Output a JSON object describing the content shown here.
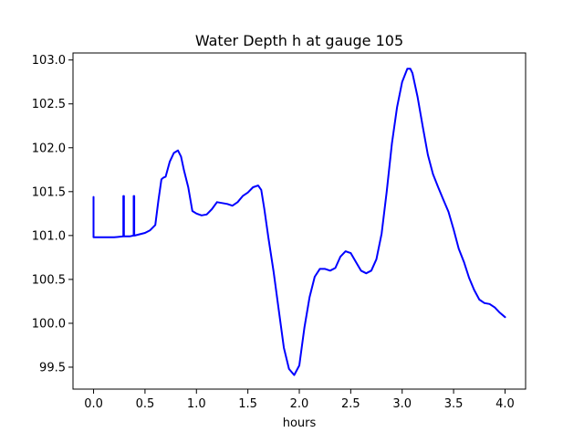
{
  "chart_data": {
    "type": "line",
    "title": "Water Depth h at gauge 105",
    "xlabel": "hours",
    "ylabel": "",
    "xlim": [
      -0.2,
      4.2
    ],
    "ylim": [
      99.25,
      103.08
    ],
    "xticks": [
      0.0,
      0.5,
      1.0,
      1.5,
      2.0,
      2.5,
      3.0,
      3.5,
      4.0
    ],
    "xtick_labels": [
      "0.0",
      "0.5",
      "1.0",
      "1.5",
      "2.0",
      "2.5",
      "3.0",
      "3.5",
      "4.0"
    ],
    "yticks": [
      99.5,
      100.0,
      100.5,
      101.0,
      101.5,
      102.0,
      102.5,
      103.0
    ],
    "ytick_labels": [
      "99.5",
      "100.0",
      "100.5",
      "101.0",
      "101.5",
      "102.0",
      "102.5",
      "103.0"
    ],
    "grid": false,
    "series": [
      {
        "color": "#0000ff",
        "x": [
          0.0,
          0.0,
          0.01,
          0.1,
          0.2,
          0.29,
          0.29,
          0.295,
          0.295,
          0.3,
          0.35,
          0.39,
          0.39,
          0.395,
          0.395,
          0.4,
          0.5,
          0.55,
          0.6,
          0.63,
          0.66,
          0.68,
          0.7,
          0.74,
          0.78,
          0.82,
          0.85,
          0.88,
          0.92,
          0.96,
          1.0,
          1.05,
          1.1,
          1.15,
          1.2,
          1.25,
          1.3,
          1.35,
          1.4,
          1.45,
          1.5,
          1.55,
          1.6,
          1.63,
          1.66,
          1.7,
          1.75,
          1.8,
          1.85,
          1.9,
          1.95,
          2.0,
          2.05,
          2.1,
          2.15,
          2.2,
          2.25,
          2.3,
          2.35,
          2.4,
          2.45,
          2.5,
          2.55,
          2.6,
          2.65,
          2.7,
          2.75,
          2.8,
          2.85,
          2.9,
          2.95,
          3.0,
          3.05,
          3.08,
          3.1,
          3.15,
          3.2,
          3.25,
          3.3,
          3.35,
          3.4,
          3.45,
          3.5,
          3.55,
          3.6,
          3.65,
          3.7,
          3.75,
          3.8,
          3.85,
          3.9,
          3.95,
          4.0
        ],
        "y": [
          101.44,
          100.98,
          100.98,
          100.98,
          100.98,
          100.99,
          101.45,
          101.45,
          100.99,
          100.99,
          100.99,
          101.0,
          101.45,
          101.45,
          101.0,
          101.0,
          101.03,
          101.06,
          101.12,
          101.4,
          101.64,
          101.66,
          101.67,
          101.84,
          101.94,
          101.97,
          101.9,
          101.74,
          101.55,
          101.28,
          101.25,
          101.23,
          101.24,
          101.3,
          101.38,
          101.37,
          101.36,
          101.34,
          101.38,
          101.45,
          101.49,
          101.55,
          101.57,
          101.52,
          101.3,
          100.97,
          100.59,
          100.15,
          99.72,
          99.48,
          99.41,
          99.52,
          99.95,
          100.3,
          100.53,
          100.62,
          100.62,
          100.6,
          100.63,
          100.76,
          100.82,
          100.8,
          100.7,
          100.6,
          100.57,
          100.6,
          100.73,
          101.02,
          101.5,
          102.05,
          102.46,
          102.75,
          102.9,
          102.9,
          102.85,
          102.58,
          102.24,
          101.92,
          101.7,
          101.55,
          101.41,
          101.27,
          101.07,
          100.85,
          100.7,
          100.52,
          100.38,
          100.27,
          100.23,
          100.22,
          100.18,
          100.12,
          100.07
        ]
      }
    ]
  }
}
